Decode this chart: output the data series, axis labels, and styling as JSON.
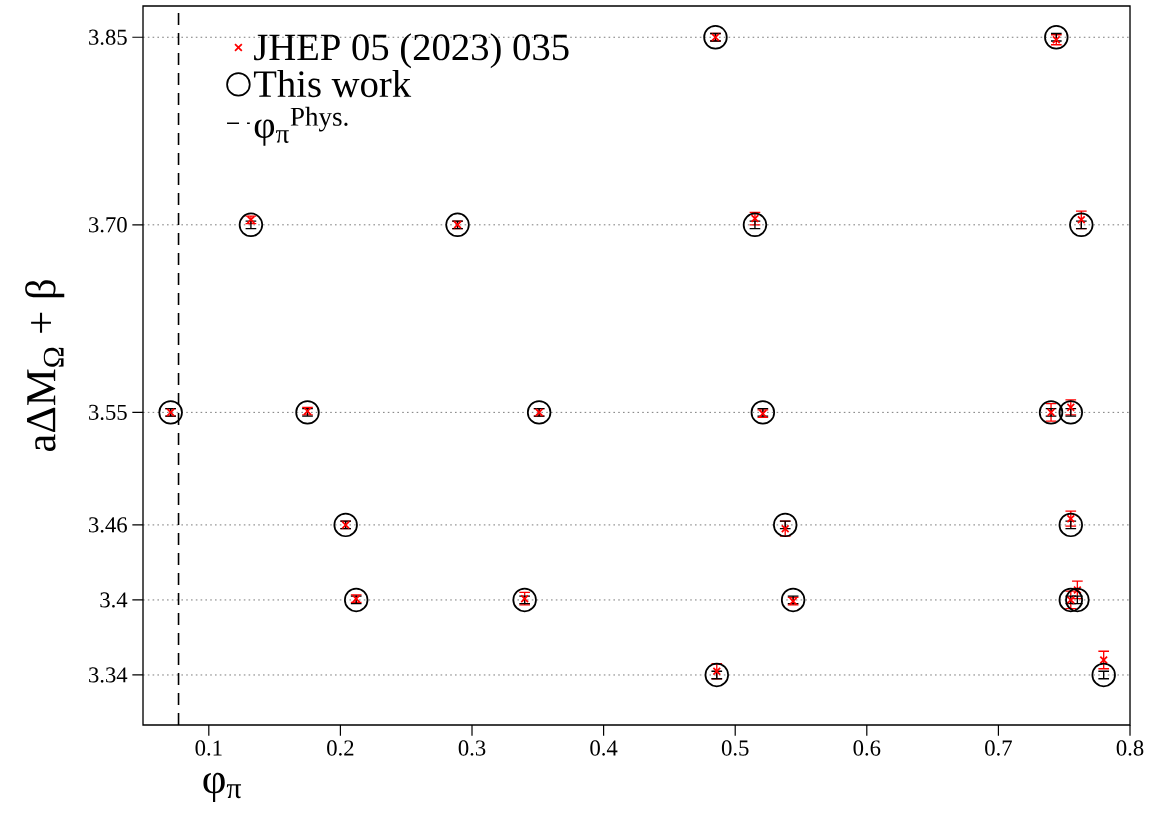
{
  "chart_data": {
    "type": "scatter",
    "xlabel": "φ$_{π}$",
    "ylabel": "aΔM$_{Ω}$ + β",
    "xlim": [
      0.05,
      0.8
    ],
    "ylim": [
      3.3,
      3.875
    ],
    "xticks": [
      0.1,
      0.2,
      0.3,
      0.4,
      0.5,
      0.6,
      0.7,
      0.8
    ],
    "yticks": [
      3.34,
      {
        "value": 3.4,
        "label": "3.4"
      },
      3.46,
      3.55,
      {
        "value": 3.7,
        "label": "3.70"
      },
      3.85
    ],
    "grid": "y",
    "legend": "top left",
    "x": [
      0.485,
      0.744,
      0.132,
      0.289,
      0.515,
      0.763,
      0.071,
      0.175,
      0.351,
      0.521,
      0.74,
      0.755,
      0.204,
      0.538,
      0.755,
      0.212,
      0.34,
      0.544,
      0.755,
      0.76,
      0.486,
      0.78
    ],
    "series": [
      {
        "name": "JHEP 05 (2023) 035",
        "color": "#ff0000",
        "marker": "cross",
        "values": [
          3.85,
          3.848,
          3.704,
          3.7,
          3.705,
          3.704,
          3.55,
          3.551,
          3.55,
          3.549,
          3.55,
          3.554,
          3.46,
          3.457,
          3.465,
          3.401,
          3.401,
          3.399,
          3.4,
          3.408,
          3.343,
          3.352
        ],
        "errors": [
          0.003,
          0.004,
          0.003,
          0.003,
          0.005,
          0.007,
          0.003,
          0.003,
          0.003,
          0.003,
          0.007,
          0.006,
          0.003,
          0.006,
          0.006,
          0.003,
          0.005,
          0.003,
          0.007,
          0.007,
          0.006,
          0.007
        ]
      },
      {
        "name": "This work",
        "color": "#000000",
        "marker": "circle",
        "values": [
          3.85,
          3.85,
          3.7,
          3.7,
          3.7,
          3.7,
          3.55,
          3.55,
          3.55,
          3.55,
          3.55,
          3.55,
          3.46,
          3.46,
          3.46,
          3.4,
          3.4,
          3.4,
          3.4,
          3.4,
          3.34,
          3.34
        ],
        "errors": [
          0.003,
          0.003,
          0.003,
          0.003,
          0.003,
          0.003,
          0.003,
          0.003,
          0.003,
          0.003,
          0.003,
          0.003,
          0.003,
          0.003,
          0.003,
          0.003,
          0.003,
          0.003,
          0.003,
          0.003,
          0.003,
          0.003
        ]
      }
    ],
    "ref_lines": [
      {
        "axis": "x",
        "value": 0.077,
        "label": "φ$_{π}$$^{Phys.}$",
        "color": "#000000",
        "line_style": "dashed"
      }
    ]
  }
}
